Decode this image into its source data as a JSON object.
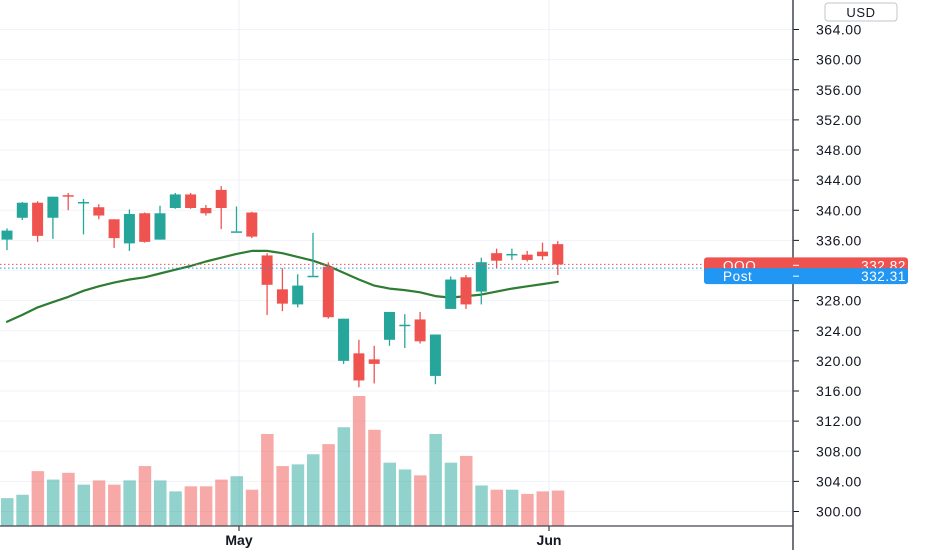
{
  "chart_data": {
    "type": "candlestick",
    "currency": "USD",
    "y_ticks": [
      "364.00",
      "360.00",
      "356.00",
      "352.00",
      "348.00",
      "344.00",
      "340.00",
      "336.00",
      "332.00",
      "328.00",
      "324.00",
      "320.00",
      "316.00",
      "312.00",
      "308.00",
      "304.00",
      "300.00"
    ],
    "ylim": [
      297.5,
      366.5
    ],
    "x_labels": [
      "May",
      "Jun"
    ],
    "price_label": {
      "symbol": "QQQ",
      "value": "332.82",
      "color": "#ef5350"
    },
    "post_label": {
      "symbol": "Post",
      "value": "332.31",
      "color": "#2196f3"
    },
    "up_color": "#26a69a",
    "down_color": "#ef5350",
    "ma_color": "#2e7d32",
    "candles": [
      {
        "o": 336.1,
        "h": 337.6,
        "l": 334.7,
        "c": 337.3,
        "v": 0.33
      },
      {
        "o": 339.0,
        "h": 341.1,
        "l": 338.7,
        "c": 341.0,
        "v": 0.37
      },
      {
        "o": 341.0,
        "h": 341.2,
        "l": 335.8,
        "c": 336.6,
        "v": 0.65
      },
      {
        "o": 339.0,
        "h": 341.8,
        "l": 336.2,
        "c": 341.8,
        "v": 0.55
      },
      {
        "o": 342.0,
        "h": 342.3,
        "l": 340.0,
        "c": 341.8,
        "v": 0.63
      },
      {
        "o": 341.1,
        "h": 341.5,
        "l": 336.8,
        "c": 341.1,
        "v": 0.49
      },
      {
        "o": 340.4,
        "h": 340.8,
        "l": 338.8,
        "c": 339.3,
        "v": 0.54
      },
      {
        "o": 338.8,
        "h": 338.8,
        "l": 335.0,
        "c": 336.3,
        "v": 0.49
      },
      {
        "o": 335.6,
        "h": 340.1,
        "l": 334.6,
        "c": 339.5,
        "v": 0.54
      },
      {
        "o": 339.6,
        "h": 339.7,
        "l": 335.7,
        "c": 335.8,
        "v": 0.71
      },
      {
        "o": 336.1,
        "h": 340.6,
        "l": 336.1,
        "c": 339.6,
        "v": 0.54
      },
      {
        "o": 340.3,
        "h": 342.3,
        "l": 340.2,
        "c": 342.1,
        "v": 0.41
      },
      {
        "o": 342.1,
        "h": 342.3,
        "l": 340.2,
        "c": 340.3,
        "v": 0.47
      },
      {
        "o": 340.3,
        "h": 340.7,
        "l": 339.3,
        "c": 339.6,
        "v": 0.47
      },
      {
        "o": 342.7,
        "h": 343.2,
        "l": 337.5,
        "c": 340.3,
        "v": 0.55
      },
      {
        "o": 337.2,
        "h": 340.5,
        "l": 337.2,
        "c": 337.2,
        "v": 0.59
      },
      {
        "o": 339.7,
        "h": 339.8,
        "l": 336.3,
        "c": 336.5,
        "v": 0.43
      },
      {
        "o": 334.0,
        "h": 334.3,
        "l": 326.1,
        "c": 330.1,
        "v": 1.09
      },
      {
        "o": 329.5,
        "h": 332.3,
        "l": 326.6,
        "c": 327.6,
        "v": 0.71
      },
      {
        "o": 327.5,
        "h": 331.5,
        "l": 327.1,
        "c": 330.0,
        "v": 0.73
      },
      {
        "o": 331.3,
        "h": 337.0,
        "l": 331.3,
        "c": 331.3,
        "v": 0.85
      },
      {
        "o": 332.5,
        "h": 333.1,
        "l": 325.6,
        "c": 325.8,
        "v": 0.97
      },
      {
        "o": 320.0,
        "h": 325.6,
        "l": 319.6,
        "c": 325.6,
        "v": 1.17
      },
      {
        "o": 321.0,
        "h": 322.8,
        "l": 316.5,
        "c": 317.4,
        "v": 1.54
      },
      {
        "o": 320.2,
        "h": 322.0,
        "l": 317.0,
        "c": 319.6,
        "v": 1.14
      },
      {
        "o": 322.8,
        "h": 326.5,
        "l": 322.0,
        "c": 326.5,
        "v": 0.75
      },
      {
        "o": 324.6,
        "h": 326.2,
        "l": 321.7,
        "c": 324.8,
        "v": 0.67
      },
      {
        "o": 325.5,
        "h": 326.5,
        "l": 322.3,
        "c": 322.6,
        "v": 0.6
      },
      {
        "o": 318.0,
        "h": 323.5,
        "l": 316.9,
        "c": 323.5,
        "v": 1.09
      },
      {
        "o": 326.9,
        "h": 331.2,
        "l": 326.9,
        "c": 330.8,
        "v": 0.75
      },
      {
        "o": 331.1,
        "h": 331.4,
        "l": 326.9,
        "c": 327.5,
        "v": 0.83
      },
      {
        "o": 329.2,
        "h": 333.7,
        "l": 327.5,
        "c": 333.1,
        "v": 0.48
      },
      {
        "o": 334.3,
        "h": 334.9,
        "l": 332.3,
        "c": 333.3,
        "v": 0.43
      },
      {
        "o": 334.2,
        "h": 334.9,
        "l": 333.4,
        "c": 334.2,
        "v": 0.43
      },
      {
        "o": 334.1,
        "h": 334.6,
        "l": 333.2,
        "c": 333.4,
        "v": 0.38
      },
      {
        "o": 334.5,
        "h": 335.7,
        "l": 333.4,
        "c": 333.9,
        "v": 0.41
      },
      {
        "o": 335.5,
        "h": 335.9,
        "l": 331.4,
        "c": 332.8,
        "v": 0.42
      }
    ],
    "ma": [
      325.2,
      326.1,
      327.1,
      327.8,
      328.5,
      329.3,
      329.9,
      330.4,
      330.8,
      331.1,
      331.6,
      332.1,
      332.6,
      333.2,
      333.7,
      334.2,
      334.6,
      334.6,
      334.3,
      333.8,
      333.3,
      332.6,
      331.7,
      330.8,
      330.0,
      329.6,
      329.4,
      329.1,
      328.6,
      328.4,
      328.6,
      328.8,
      329.2,
      329.6,
      329.9,
      330.2,
      330.5
    ]
  }
}
